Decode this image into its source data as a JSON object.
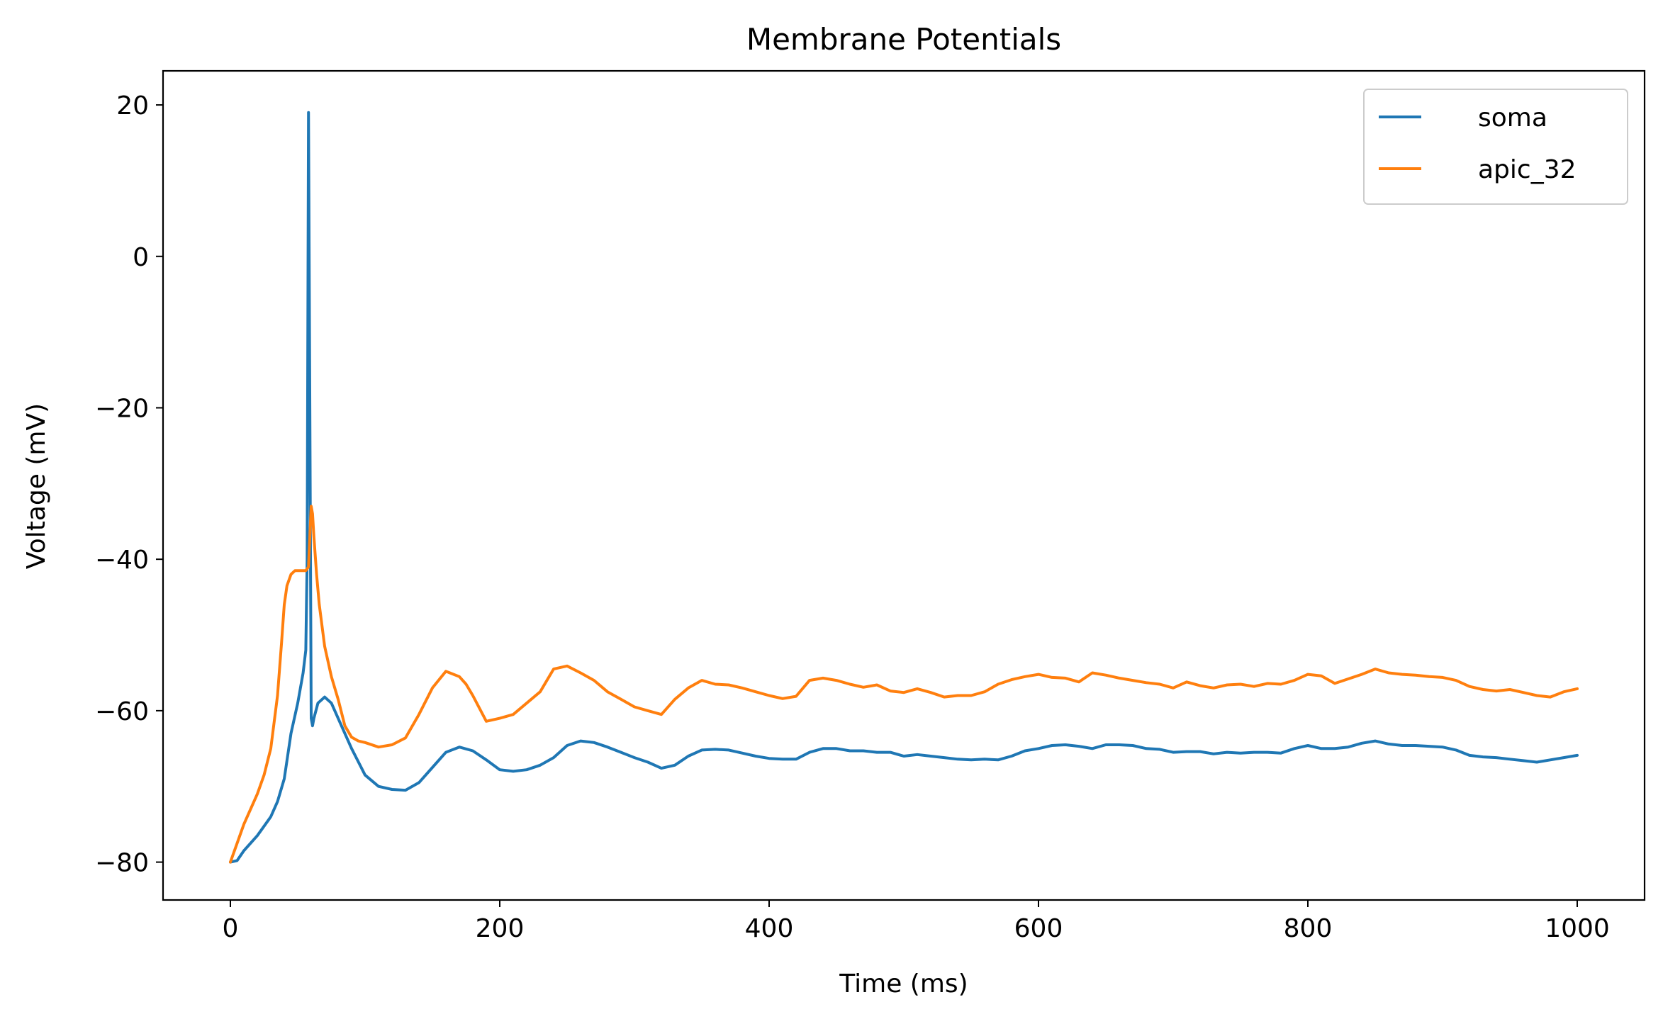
{
  "chart_data": {
    "type": "line",
    "title": "Membrane Potentials",
    "xlabel": "Time (ms)",
    "ylabel": "Voltage (mV)",
    "xlim": [
      -50,
      1050
    ],
    "ylim": [
      -85,
      24.5
    ],
    "xticks": [
      0,
      200,
      400,
      600,
      800,
      1000
    ],
    "xtick_labels": [
      "0",
      "200",
      "400",
      "600",
      "800",
      "1000"
    ],
    "yticks": [
      -80,
      -60,
      -40,
      -20,
      0,
      20
    ],
    "ytick_labels": [
      "−80",
      "−60",
      "−40",
      "−20",
      "0",
      "20"
    ],
    "grid": false,
    "legend_position": "top-right",
    "series": [
      {
        "name": "soma",
        "color": "#1f77b4",
        "x": [
          0,
          5,
          10,
          20,
          30,
          35,
          40,
          45,
          50,
          54,
          56,
          57,
          58,
          59,
          60,
          61,
          62,
          65,
          70,
          75,
          80,
          90,
          100,
          110,
          120,
          130,
          140,
          150,
          160,
          170,
          180,
          190,
          200,
          210,
          220,
          230,
          240,
          250,
          260,
          270,
          280,
          290,
          300,
          310,
          320,
          330,
          340,
          350,
          360,
          370,
          380,
          390,
          400,
          410,
          420,
          430,
          440,
          450,
          460,
          470,
          480,
          490,
          500,
          510,
          520,
          530,
          540,
          550,
          560,
          570,
          580,
          590,
          600,
          610,
          620,
          630,
          640,
          650,
          660,
          670,
          680,
          690,
          700,
          710,
          720,
          730,
          740,
          750,
          760,
          770,
          780,
          790,
          800,
          810,
          820,
          830,
          840,
          850,
          860,
          870,
          880,
          890,
          900,
          910,
          920,
          930,
          940,
          950,
          960,
          970,
          980,
          990,
          1000
        ],
        "values": [
          -80,
          -79.8,
          -78.5,
          -76.5,
          -74,
          -72,
          -69,
          -63,
          -59,
          -55,
          -52,
          -40,
          19,
          -20,
          -61,
          -62,
          -61,
          -59,
          -58.2,
          -59,
          -61,
          -65,
          -68.5,
          -70,
          -70.4,
          -70.5,
          -69.5,
          -67.5,
          -65.5,
          -64.8,
          -65.3,
          -66.5,
          -67.8,
          -68,
          -67.8,
          -67.2,
          -66.2,
          -64.6,
          -64,
          -64.2,
          -64.8,
          -65.5,
          -66.2,
          -66.8,
          -67.6,
          -67.2,
          -66,
          -65.2,
          -65.1,
          -65.2,
          -65.6,
          -66,
          -66.3,
          -66.4,
          -66.4,
          -65.5,
          -65,
          -65,
          -65.3,
          -65.3,
          -65.5,
          -65.5,
          -66,
          -65.8,
          -66,
          -66.2,
          -66.4,
          -66.5,
          -66.4,
          -66.5,
          -66,
          -65.3,
          -65,
          -64.6,
          -64.5,
          -64.7,
          -65,
          -64.5,
          -64.5,
          -64.6,
          -65,
          -65.1,
          -65.5,
          -65.4,
          -65.4,
          -65.7,
          -65.5,
          -65.6,
          -65.5,
          -65.5,
          -65.6,
          -65,
          -64.6,
          -65,
          -65,
          -64.8,
          -64.3,
          -64,
          -64.4,
          -64.6,
          -64.6,
          -64.7,
          -64.8,
          -65.2,
          -65.9,
          -66.1,
          -66.2,
          -66.4,
          -66.6,
          -66.8,
          -66.5,
          -66.2,
          -65.9
        ]
      },
      {
        "name": "apic_32",
        "color": "#ff7f0e",
        "x": [
          0,
          5,
          10,
          15,
          20,
          25,
          30,
          35,
          38,
          40,
          42,
          45,
          48,
          52,
          56,
          58,
          60,
          61,
          62,
          64,
          66,
          70,
          75,
          80,
          85,
          90,
          95,
          100,
          110,
          120,
          130,
          140,
          150,
          160,
          170,
          175,
          180,
          190,
          200,
          210,
          220,
          230,
          240,
          250,
          260,
          270,
          280,
          290,
          300,
          310,
          320,
          330,
          340,
          350,
          360,
          370,
          380,
          390,
          400,
          410,
          420,
          430,
          440,
          450,
          460,
          470,
          480,
          490,
          500,
          510,
          520,
          530,
          540,
          550,
          560,
          570,
          580,
          590,
          600,
          610,
          620,
          630,
          640,
          650,
          660,
          670,
          680,
          690,
          700,
          710,
          720,
          730,
          740,
          750,
          760,
          770,
          780,
          790,
          800,
          810,
          820,
          830,
          840,
          850,
          860,
          870,
          880,
          890,
          900,
          910,
          920,
          930,
          940,
          950,
          960,
          970,
          980,
          990,
          1000
        ],
        "values": [
          -80,
          -77.5,
          -75,
          -73,
          -71,
          -68.5,
          -65,
          -58,
          -51,
          -46,
          -43.5,
          -42,
          -41.5,
          -41.5,
          -41.5,
          -41,
          -33,
          -34,
          -37,
          -42,
          -46,
          -51.5,
          -55.5,
          -58.5,
          -62,
          -63.5,
          -64,
          -64.2,
          -64.8,
          -64.5,
          -63.6,
          -60.5,
          -57,
          -54.8,
          -55.5,
          -56.5,
          -58,
          -61.4,
          -61,
          -60.5,
          -59,
          -57.5,
          -54.5,
          -54.1,
          -55,
          -56,
          -57.5,
          -58.5,
          -59.5,
          -60,
          -60.5,
          -58.5,
          -57,
          -56,
          -56.5,
          -56.6,
          -57,
          -57.5,
          -58,
          -58.4,
          -58.1,
          -56,
          -55.7,
          -56,
          -56.5,
          -56.9,
          -56.6,
          -57.4,
          -57.6,
          -57.1,
          -57.6,
          -58.2,
          -58,
          -58,
          -57.5,
          -56.5,
          -55.9,
          -55.5,
          -55.2,
          -55.6,
          -55.7,
          -56.2,
          -55,
          -55.3,
          -55.7,
          -56,
          -56.3,
          -56.5,
          -57,
          -56.2,
          -56.7,
          -57,
          -56.6,
          -56.5,
          -56.8,
          -56.4,
          -56.5,
          -56,
          -55.2,
          -55.4,
          -56.4,
          -55.8,
          -55.2,
          -54.5,
          -55,
          -55.2,
          -55.3,
          -55.5,
          -55.6,
          -56,
          -56.8,
          -57.2,
          -57.4,
          -57.2,
          -57.6,
          -58,
          -58.2,
          -57.5,
          -57.1
        ]
      }
    ]
  }
}
